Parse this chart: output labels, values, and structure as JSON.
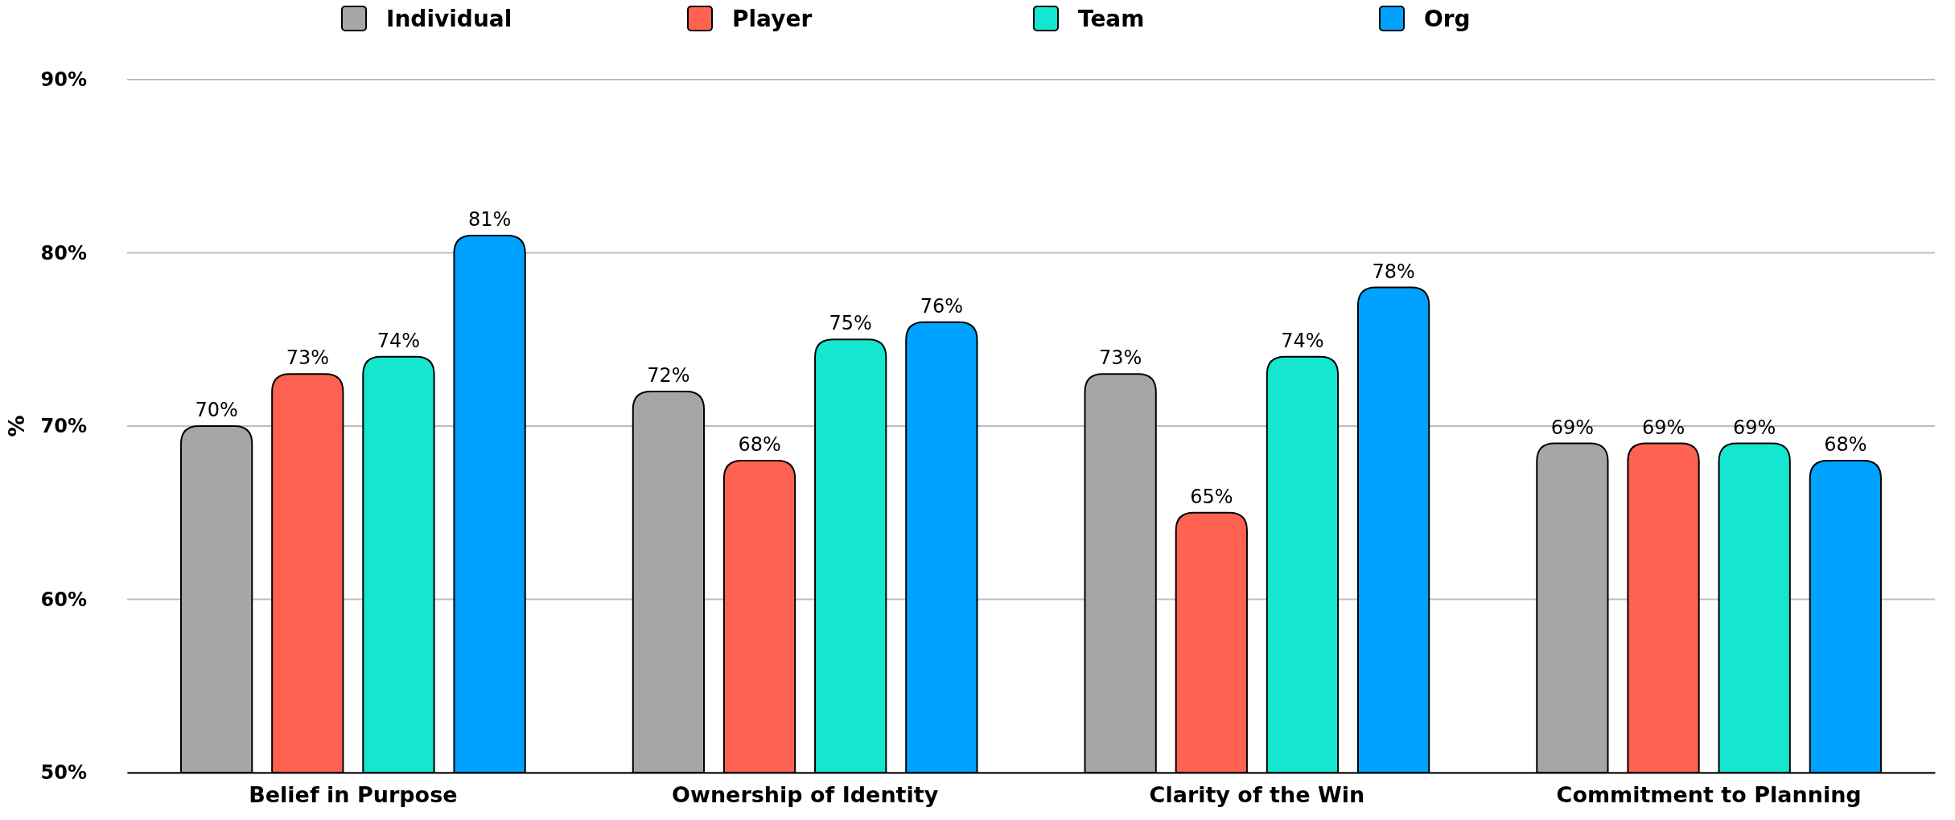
{
  "chart_data": {
    "type": "bar",
    "ylabel": "%",
    "categories": [
      "Belief in Purpose",
      "Ownership of Identity",
      "Clarity of the Win",
      "Commitment to Planning"
    ],
    "series": [
      {
        "name": "Individual",
        "color": "#a6a6a6",
        "values": [
          70,
          72,
          73,
          69
        ],
        "value_labels": [
          "70%",
          "72%",
          "73%",
          "69%"
        ]
      },
      {
        "name": "Player",
        "color": "#ff6250",
        "values": [
          73,
          68,
          65,
          69
        ],
        "value_labels": [
          "73%",
          "68%",
          "65%",
          "69%"
        ]
      },
      {
        "name": "Team",
        "color": "#15e6cf",
        "values": [
          74,
          75,
          74,
          69
        ],
        "value_labels": [
          "74%",
          "75%",
          "74%",
          "69%"
        ]
      },
      {
        "name": "Org",
        "color": "#00a2ff",
        "values": [
          81,
          76,
          78,
          68
        ],
        "value_labels": [
          "81%",
          "76%",
          "78%",
          "68%"
        ]
      }
    ],
    "ylim": [
      50,
      90
    ],
    "yticks": [
      {
        "value": 50,
        "label": "50%"
      },
      {
        "value": 60,
        "label": "60%"
      },
      {
        "value": 70,
        "label": "70%"
      },
      {
        "value": 80,
        "label": "80%"
      },
      {
        "value": 90,
        "label": "90%"
      }
    ],
    "grid": "y",
    "legend": "top"
  }
}
